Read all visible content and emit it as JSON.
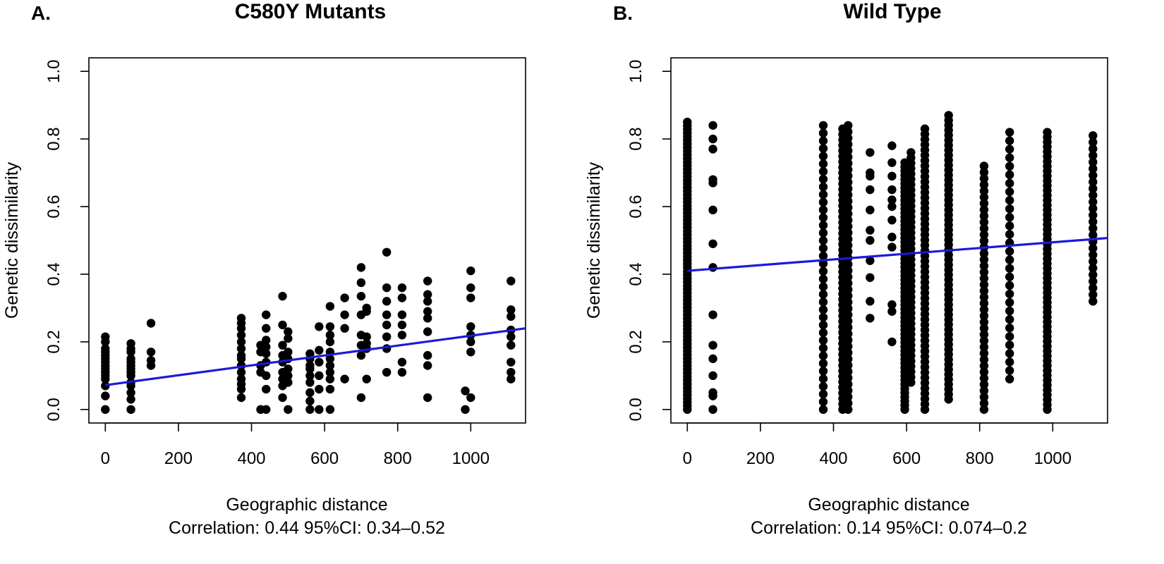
{
  "chart_data": [
    {
      "type": "scatter",
      "panel_label": "A.",
      "title": "C580Y Mutants",
      "xlabel": "Geographic distance",
      "ylabel": "Genetic dissimilarity",
      "caption": "Correlation: 0.44 95%CI: 0.34–0.52",
      "xlim": [
        -45,
        1150
      ],
      "ylim": [
        -0.04,
        1.04
      ],
      "xticks": [
        0,
        200,
        400,
        600,
        800,
        1000
      ],
      "yticks": [
        0.0,
        0.2,
        0.4,
        0.6,
        0.8,
        1.0
      ],
      "xtick_labels": [
        "0",
        "200",
        "400",
        "600",
        "800",
        "1000"
      ],
      "ytick_labels": [
        "0.0",
        "0.2",
        "0.4",
        "0.6",
        "0.8",
        "1.0"
      ],
      "point_color": "#000000",
      "line_color": "#1a1adb",
      "regression": {
        "x": [
          0,
          1150
        ],
        "y": [
          0.072,
          0.24
        ]
      },
      "columns": [
        {
          "x": 0,
          "y": [
            0.0,
            0.04,
            0.07,
            0.09,
            0.1,
            0.11,
            0.12,
            0.13,
            0.14,
            0.15,
            0.16,
            0.17,
            0.18,
            0.2,
            0.215
          ]
        },
        {
          "x": 70,
          "y": [
            0.0,
            0.03,
            0.05,
            0.07,
            0.08,
            0.1,
            0.11,
            0.12,
            0.13,
            0.14,
            0.15,
            0.17,
            0.18,
            0.195
          ]
        },
        {
          "x": 125,
          "y": [
            0.13,
            0.145,
            0.17,
            0.255
          ]
        },
        {
          "x": 372,
          "y": [
            0.035,
            0.06,
            0.075,
            0.09,
            0.11,
            0.13,
            0.15,
            0.16,
            0.18,
            0.2,
            0.22,
            0.24,
            0.255,
            0.27
          ]
        },
        {
          "x": 425,
          "y": [
            0.0,
            0.11,
            0.13,
            0.17,
            0.19
          ]
        },
        {
          "x": 440,
          "y": [
            0.0,
            0.06,
            0.1,
            0.14,
            0.165,
            0.185,
            0.205,
            0.24,
            0.28
          ]
        },
        {
          "x": 485,
          "y": [
            0.035,
            0.07,
            0.09,
            0.11,
            0.14,
            0.16,
            0.19,
            0.25,
            0.335
          ]
        },
        {
          "x": 500,
          "y": [
            0.0,
            0.08,
            0.1,
            0.12,
            0.15,
            0.17,
            0.21,
            0.23
          ]
        },
        {
          "x": 560,
          "y": [
            0.0,
            0.025,
            0.05,
            0.08,
            0.1,
            0.12,
            0.13,
            0.15,
            0.165
          ]
        },
        {
          "x": 585,
          "y": [
            0.0,
            0.06,
            0.1,
            0.14,
            0.175,
            0.245
          ]
        },
        {
          "x": 615,
          "y": [
            0.0,
            0.06,
            0.09,
            0.11,
            0.13,
            0.15,
            0.17,
            0.2,
            0.22,
            0.245,
            0.305
          ]
        },
        {
          "x": 655,
          "y": [
            0.09,
            0.24,
            0.28,
            0.33
          ]
        },
        {
          "x": 700,
          "y": [
            0.035,
            0.16,
            0.19,
            0.22,
            0.28,
            0.335,
            0.375,
            0.42
          ]
        },
        {
          "x": 715,
          "y": [
            0.09,
            0.18,
            0.195,
            0.215,
            0.29,
            0.3
          ]
        },
        {
          "x": 770,
          "y": [
            0.11,
            0.18,
            0.215,
            0.25,
            0.28,
            0.32,
            0.36,
            0.465
          ]
        },
        {
          "x": 812,
          "y": [
            0.11,
            0.14,
            0.22,
            0.25,
            0.28,
            0.33,
            0.36
          ]
        },
        {
          "x": 882,
          "y": [
            0.035,
            0.13,
            0.16,
            0.23,
            0.27,
            0.29,
            0.32,
            0.34,
            0.38
          ]
        },
        {
          "x": 985,
          "y": [
            0.0,
            0.055
          ]
        },
        {
          "x": 1000,
          "y": [
            0.035,
            0.17,
            0.2,
            0.22,
            0.245,
            0.33,
            0.36,
            0.41
          ]
        },
        {
          "x": 1110,
          "y": [
            0.09,
            0.11,
            0.14,
            0.19,
            0.215,
            0.235,
            0.275,
            0.295,
            0.38
          ]
        }
      ]
    },
    {
      "type": "scatter",
      "panel_label": "B.",
      "title": "Wild Type",
      "xlabel": "Geographic distance",
      "ylabel": "Genetic dissimilarity",
      "caption": "Correlation: 0.14 95%CI: 0.074–0.2",
      "xlim": [
        -45,
        1150
      ],
      "ylim": [
        -0.04,
        1.04
      ],
      "xticks": [
        0,
        200,
        400,
        600,
        800,
        1000
      ],
      "yticks": [
        0.0,
        0.2,
        0.4,
        0.6,
        0.8,
        1.0
      ],
      "xtick_labels": [
        "0",
        "200",
        "400",
        "600",
        "800",
        "1000"
      ],
      "ytick_labels": [
        "0.0",
        "0.2",
        "0.4",
        "0.6",
        "0.8",
        "1.0"
      ],
      "point_color": "#000000",
      "line_color": "#1a1adb",
      "regression": {
        "x": [
          0,
          1150
        ],
        "y": [
          0.41,
          0.507
        ]
      },
      "dense_columns": [
        {
          "x": 0,
          "y_min": 0.0,
          "y_max": 0.85,
          "n": 80
        },
        {
          "x": 372,
          "y_min": 0.0,
          "y_max": 0.84,
          "n": 38
        },
        {
          "x": 425,
          "y_min": 0.0,
          "y_max": 0.83,
          "n": 52
        },
        {
          "x": 440,
          "y_min": 0.0,
          "y_max": 0.84,
          "n": 46
        },
        {
          "x": 595,
          "y_min": 0.0,
          "y_max": 0.73,
          "n": 60
        },
        {
          "x": 612,
          "y_min": 0.08,
          "y_max": 0.76,
          "n": 44
        },
        {
          "x": 650,
          "y_min": 0.0,
          "y_max": 0.83,
          "n": 54
        },
        {
          "x": 715,
          "y_min": 0.03,
          "y_max": 0.87,
          "n": 58
        },
        {
          "x": 812,
          "y_min": 0.0,
          "y_max": 0.72,
          "n": 40
        },
        {
          "x": 882,
          "y_min": 0.09,
          "y_max": 0.82,
          "n": 30
        },
        {
          "x": 985,
          "y_min": 0.0,
          "y_max": 0.82,
          "n": 58
        },
        {
          "x": 1110,
          "y_min": 0.32,
          "y_max": 0.81,
          "n": 26
        }
      ],
      "columns": [
        {
          "x": 70,
          "y": [
            0.0,
            0.04,
            0.05,
            0.1,
            0.15,
            0.19,
            0.28,
            0.42,
            0.49,
            0.59,
            0.67,
            0.68,
            0.77,
            0.8,
            0.84
          ]
        },
        {
          "x": 500,
          "y": [
            0.27,
            0.32,
            0.39,
            0.44,
            0.5,
            0.53,
            0.59,
            0.65,
            0.69,
            0.7,
            0.76
          ]
        },
        {
          "x": 560,
          "y": [
            0.2,
            0.29,
            0.31,
            0.48,
            0.51,
            0.56,
            0.6,
            0.62,
            0.65,
            0.69,
            0.73,
            0.78
          ]
        }
      ]
    }
  ]
}
